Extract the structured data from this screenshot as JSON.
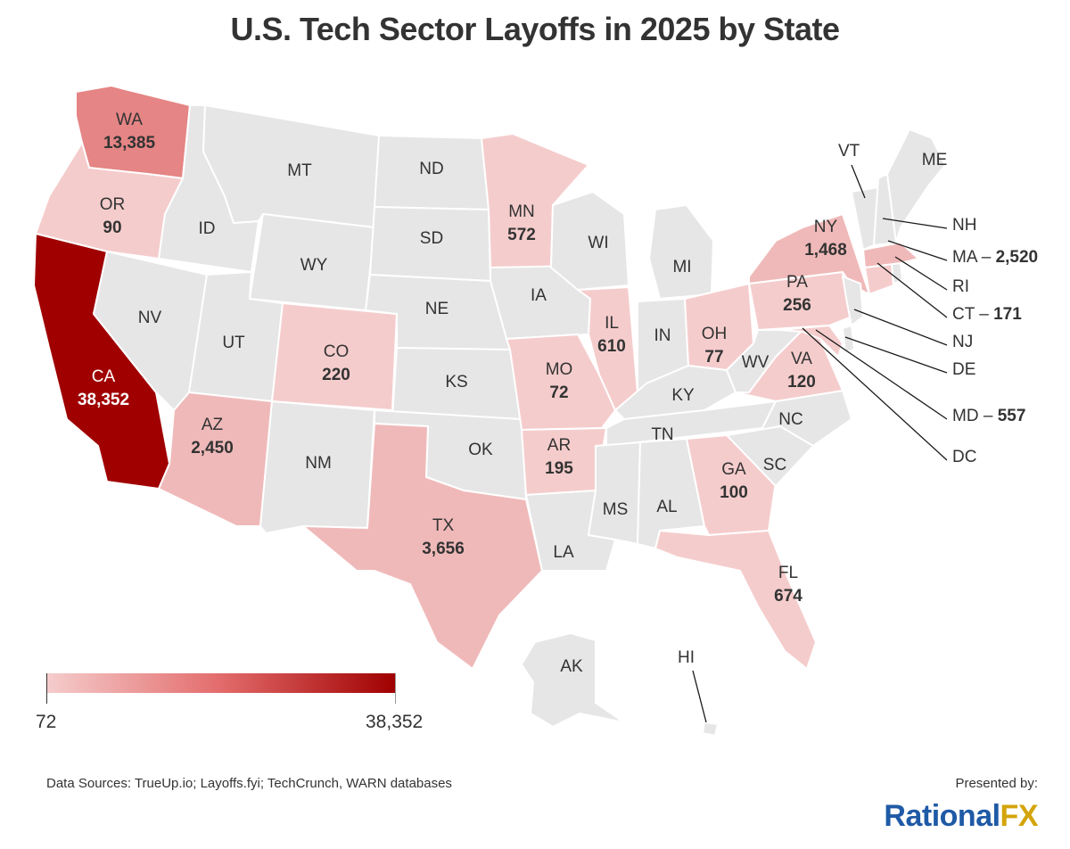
{
  "title": "U.S. Tech Sector Layoffs in 2025 by State",
  "colors": {
    "no_data": "#e6e6e6",
    "scale_min": "#f5cccc",
    "scale_mid": "#e36b6b",
    "scale_max": "#a00000",
    "brand_primary": "#1f5aa6",
    "brand_accent": "#d4a40b"
  },
  "chart_data": {
    "type": "choropleth",
    "title": "U.S. Tech Sector Layoffs in 2025 by State",
    "metric": "Tech sector layoffs (2025)",
    "states": [
      {
        "abbr": "CA",
        "value": 38352,
        "display": "38,352"
      },
      {
        "abbr": "WA",
        "value": 13385,
        "display": "13,385"
      },
      {
        "abbr": "TX",
        "value": 3656,
        "display": "3,656"
      },
      {
        "abbr": "MA",
        "value": 2520,
        "display": "2,520"
      },
      {
        "abbr": "AZ",
        "value": 2450,
        "display": "2,450"
      },
      {
        "abbr": "NY",
        "value": 1468,
        "display": "1,468"
      },
      {
        "abbr": "FL",
        "value": 674,
        "display": "674"
      },
      {
        "abbr": "IL",
        "value": 610,
        "display": "610"
      },
      {
        "abbr": "MN",
        "value": 572,
        "display": "572"
      },
      {
        "abbr": "MD",
        "value": 557,
        "display": "557"
      },
      {
        "abbr": "PA",
        "value": 256,
        "display": "256"
      },
      {
        "abbr": "CO",
        "value": 220,
        "display": "220"
      },
      {
        "abbr": "AR",
        "value": 195,
        "display": "195"
      },
      {
        "abbr": "CT",
        "value": 171,
        "display": "171"
      },
      {
        "abbr": "VA",
        "value": 120,
        "display": "120"
      },
      {
        "abbr": "GA",
        "value": 100,
        "display": "100"
      },
      {
        "abbr": "OR",
        "value": 90,
        "display": "90"
      },
      {
        "abbr": "OH",
        "value": 77,
        "display": "77"
      },
      {
        "abbr": "MO",
        "value": 72,
        "display": "72"
      },
      {
        "abbr": "MT",
        "value": null
      },
      {
        "abbr": "ND",
        "value": null
      },
      {
        "abbr": "ID",
        "value": null
      },
      {
        "abbr": "WY",
        "value": null
      },
      {
        "abbr": "SD",
        "value": null
      },
      {
        "abbr": "NV",
        "value": null
      },
      {
        "abbr": "UT",
        "value": null
      },
      {
        "abbr": "NE",
        "value": null
      },
      {
        "abbr": "IA",
        "value": null
      },
      {
        "abbr": "WI",
        "value": null
      },
      {
        "abbr": "MI",
        "value": null
      },
      {
        "abbr": "IN",
        "value": null
      },
      {
        "abbr": "KS",
        "value": null
      },
      {
        "abbr": "KY",
        "value": null
      },
      {
        "abbr": "WV",
        "value": null
      },
      {
        "abbr": "NM",
        "value": null
      },
      {
        "abbr": "OK",
        "value": null
      },
      {
        "abbr": "TN",
        "value": null
      },
      {
        "abbr": "NC",
        "value": null
      },
      {
        "abbr": "SC",
        "value": null
      },
      {
        "abbr": "MS",
        "value": null
      },
      {
        "abbr": "AL",
        "value": null
      },
      {
        "abbr": "LA",
        "value": null
      },
      {
        "abbr": "ME",
        "value": null
      },
      {
        "abbr": "VT",
        "value": null
      },
      {
        "abbr": "NH",
        "value": null
      },
      {
        "abbr": "RI",
        "value": null
      },
      {
        "abbr": "NJ",
        "value": null
      },
      {
        "abbr": "DE",
        "value": null
      },
      {
        "abbr": "DC",
        "value": null
      },
      {
        "abbr": "AK",
        "value": null
      },
      {
        "abbr": "HI",
        "value": null
      }
    ],
    "legend": {
      "type": "continuous-gradient",
      "min": 72,
      "min_label": "72",
      "max": 38352,
      "max_label": "38,352",
      "placement": "bottom-left"
    }
  },
  "callouts": [
    {
      "abbr": "VT"
    },
    {
      "abbr": "NH"
    },
    {
      "abbr": "MA",
      "value_label": "2,520"
    },
    {
      "abbr": "RI"
    },
    {
      "abbr": "CT",
      "value_label": "171"
    },
    {
      "abbr": "NJ"
    },
    {
      "abbr": "DE"
    },
    {
      "abbr": "MD",
      "value_label": "557"
    },
    {
      "abbr": "DC"
    },
    {
      "abbr": "HI"
    }
  ],
  "footer": {
    "sources": "Data Sources: TrueUp.io; Layoffs.fyi; TechCrunch, WARN databases",
    "presented_by": "Presented by:",
    "brand_part1": "Rational",
    "brand_part2": "FX"
  }
}
